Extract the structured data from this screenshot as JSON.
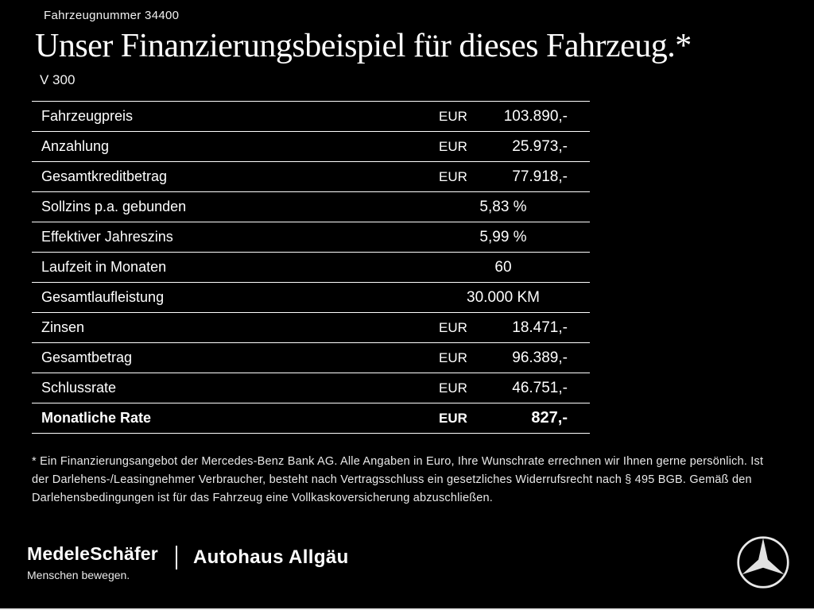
{
  "header": {
    "vehicle_number": "Fahrzeugnummer 34400",
    "title": "Unser Finanzierungsbeispiel für dieses Fahrzeug.*",
    "model": "V 300"
  },
  "table": {
    "rows": [
      {
        "label": "Fahrzeugpreis",
        "currency": "EUR",
        "value": "103.890,-",
        "bold": false
      },
      {
        "label": "Anzahlung",
        "currency": "EUR",
        "value": "25.973,-",
        "bold": false
      },
      {
        "label": "Gesamtkreditbetrag",
        "currency": "EUR",
        "value": "77.918,-",
        "bold": false
      },
      {
        "label": "Sollzins p.a. gebunden",
        "currency": "",
        "value": "5,83 %",
        "bold": false
      },
      {
        "label": "Effektiver Jahreszins",
        "currency": "",
        "value": "5,99 %",
        "bold": false
      },
      {
        "label": "Laufzeit in Monaten",
        "currency": "",
        "value": "60",
        "bold": false
      },
      {
        "label": "Gesamtlaufleistung",
        "currency": "",
        "value": "30.000 KM",
        "bold": false
      },
      {
        "label": "Zinsen",
        "currency": "EUR",
        "value": "18.471,-",
        "bold": false
      },
      {
        "label": "Gesamtbetrag",
        "currency": "EUR",
        "value": "96.389,-",
        "bold": false
      },
      {
        "label": "Schlussrate",
        "currency": "EUR",
        "value": "46.751,-",
        "bold": false
      },
      {
        "label": "Monatliche Rate",
        "currency": "EUR",
        "value": "827,-",
        "bold": true
      }
    ]
  },
  "footnote": "* Ein Finanzierungsangebot der Mercedes-Benz Bank AG. Alle Angaben in Euro, Ihre Wunschrate errechnen wir Ihnen gerne persönlich. Ist der Darlehens-/Leasingnehmer Verbraucher, besteht nach Vertragsschluss ein gesetzliches Widerrufsrecht nach § 495 BGB. Gemäß den Darlehensbedingungen ist für das Fahrzeug eine Vollkaskoversicherung abzuschließen.",
  "footer": {
    "dealer1_name": "MedeleSchäfer",
    "dealer1_tagline": "Menschen bewegen.",
    "dealer2_name": "Autohaus Allgäu"
  },
  "colors": {
    "background": "#000000",
    "text": "#ffffff",
    "line": "#ffffff"
  }
}
